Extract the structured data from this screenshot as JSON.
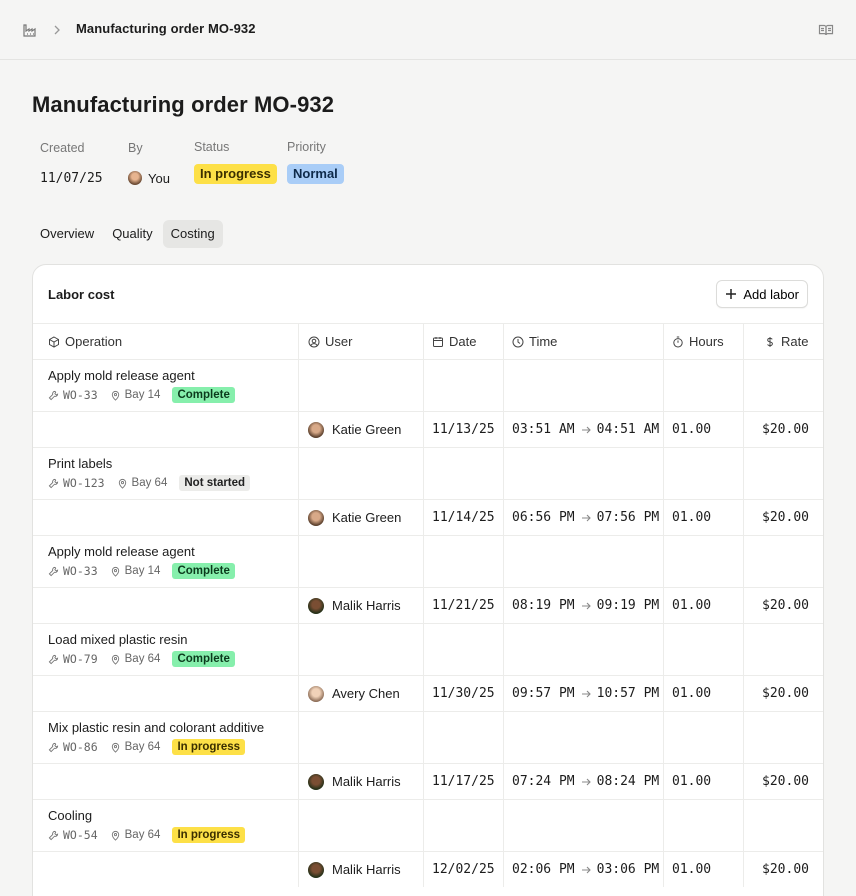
{
  "breadcrumb": {
    "title": "Manufacturing order MO-932"
  },
  "page": {
    "title": "Manufacturing order MO-932"
  },
  "meta": {
    "created_label": "Created",
    "created_value": "11/07/25",
    "by_label": "By",
    "by_value": "You",
    "status_label": "Status",
    "status_value": "In progress",
    "priority_label": "Priority",
    "priority_value": "Normal"
  },
  "tabs": [
    {
      "label": "Overview"
    },
    {
      "label": "Quality"
    },
    {
      "label": "Costing",
      "active": true
    }
  ],
  "labor": {
    "title": "Labor cost",
    "add_label": "Add labor",
    "columns": {
      "operation": "Operation",
      "user": "User",
      "date": "Date",
      "time": "Time",
      "hours": "Hours",
      "rate": "Rate"
    },
    "rows": [
      {
        "op": "Apply mold release agent",
        "wo": "WO-33",
        "bay": "Bay 14",
        "status": "Complete",
        "user": "Katie Green",
        "date": "11/13/25",
        "start": "03:51 AM",
        "end": "04:51 AM",
        "hours": "01.00",
        "rate": "$20.00"
      },
      {
        "op": "Print labels",
        "wo": "WO-123",
        "bay": "Bay 64",
        "status": "Not started",
        "user": "Katie Green",
        "date": "11/14/25",
        "start": "06:56 PM",
        "end": "07:56 PM",
        "hours": "01.00",
        "rate": "$20.00"
      },
      {
        "op": "Apply mold release agent",
        "wo": "WO-33",
        "bay": "Bay 14",
        "status": "Complete",
        "user": "Malik Harris",
        "date": "11/21/25",
        "start": "08:19 PM",
        "end": "09:19 PM",
        "hours": "01.00",
        "rate": "$20.00"
      },
      {
        "op": "Load mixed plastic resin",
        "wo": "WO-79",
        "bay": "Bay 64",
        "status": "Complete",
        "user": "Avery Chen",
        "date": "11/30/25",
        "start": "09:57 PM",
        "end": "10:57 PM",
        "hours": "01.00",
        "rate": "$20.00"
      },
      {
        "op": "Mix plastic resin and colorant additive",
        "wo": "WO-86",
        "bay": "Bay 64",
        "status": "In progress",
        "user": "Malik Harris",
        "date": "11/17/25",
        "start": "07:24 PM",
        "end": "08:24 PM",
        "hours": "01.00",
        "rate": "$20.00"
      },
      {
        "op": "Cooling",
        "wo": "WO-54",
        "bay": "Bay 64",
        "status": "In progress",
        "user": "Malik Harris",
        "date": "12/02/25",
        "start": "02:06 PM",
        "end": "03:06 PM",
        "hours": "01.00",
        "rate": "$20.00"
      }
    ]
  },
  "colors": {
    "complete": "#86efac",
    "in_progress": "#fde047",
    "not_started": "#ececea",
    "normal": "#a9cdf7",
    "avatar_katie": "#8a6a4f",
    "avatar_malik": "#3f4a2e",
    "avatar_avery": "#c9a98a",
    "avatar_you": "#9b6b4a"
  }
}
